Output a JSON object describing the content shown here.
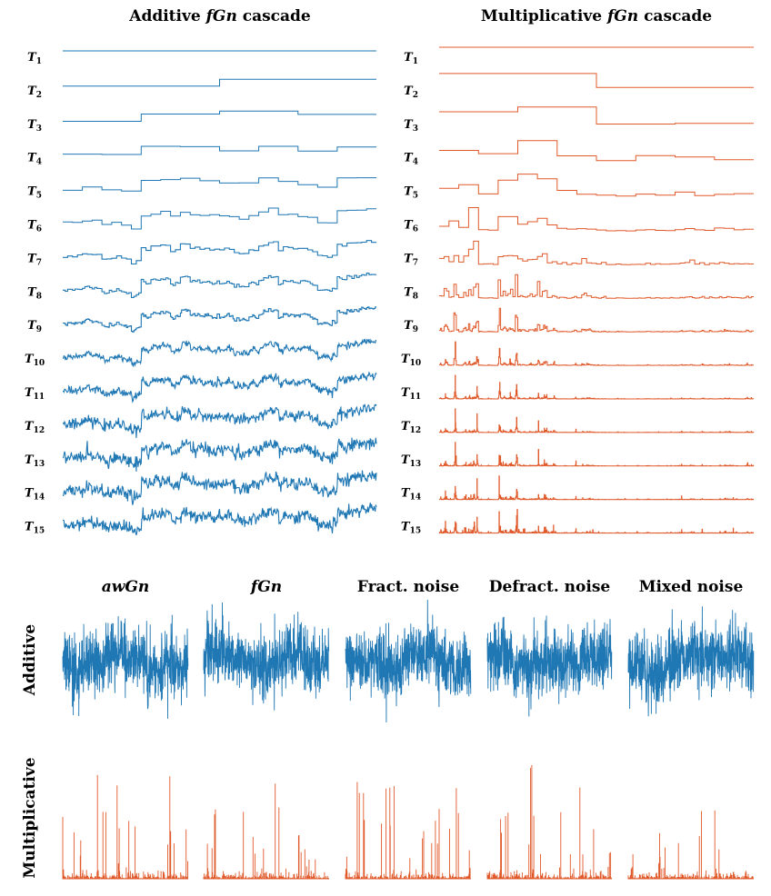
{
  "colors": {
    "additive": "#1f77b4",
    "multiplicative": "#e0592a"
  },
  "top_left": {
    "title_plain": "Additive",
    "title_italic": "fGn",
    "title_suffix": "cascade"
  },
  "top_right": {
    "title_plain": "Multiplicative",
    "title_italic": "fGn",
    "title_suffix": "cascade"
  },
  "levels": [
    {
      "base": "T",
      "sub": "1"
    },
    {
      "base": "T",
      "sub": "2"
    },
    {
      "base": "T",
      "sub": "3"
    },
    {
      "base": "T",
      "sub": "4"
    },
    {
      "base": "T",
      "sub": "5"
    },
    {
      "base": "T",
      "sub": "6"
    },
    {
      "base": "T",
      "sub": "7"
    },
    {
      "base": "T",
      "sub": "8"
    },
    {
      "base": "T",
      "sub": "9"
    },
    {
      "base": "T",
      "sub": "10"
    },
    {
      "base": "T",
      "sub": "11"
    },
    {
      "base": "T",
      "sub": "12"
    },
    {
      "base": "T",
      "sub": "13"
    },
    {
      "base": "T",
      "sub": "14"
    },
    {
      "base": "T",
      "sub": "15"
    }
  ],
  "bottom": {
    "columns": [
      {
        "title": "awGn",
        "italic": true
      },
      {
        "title": "fGn",
        "italic": true
      },
      {
        "title": "Fract. noise",
        "italic": false
      },
      {
        "title": "Defract. noise",
        "italic": false
      },
      {
        "title": "Mixed noise",
        "italic": false
      }
    ],
    "rows": [
      {
        "label": "Additive"
      },
      {
        "label": "Multiplicative"
      }
    ]
  }
}
